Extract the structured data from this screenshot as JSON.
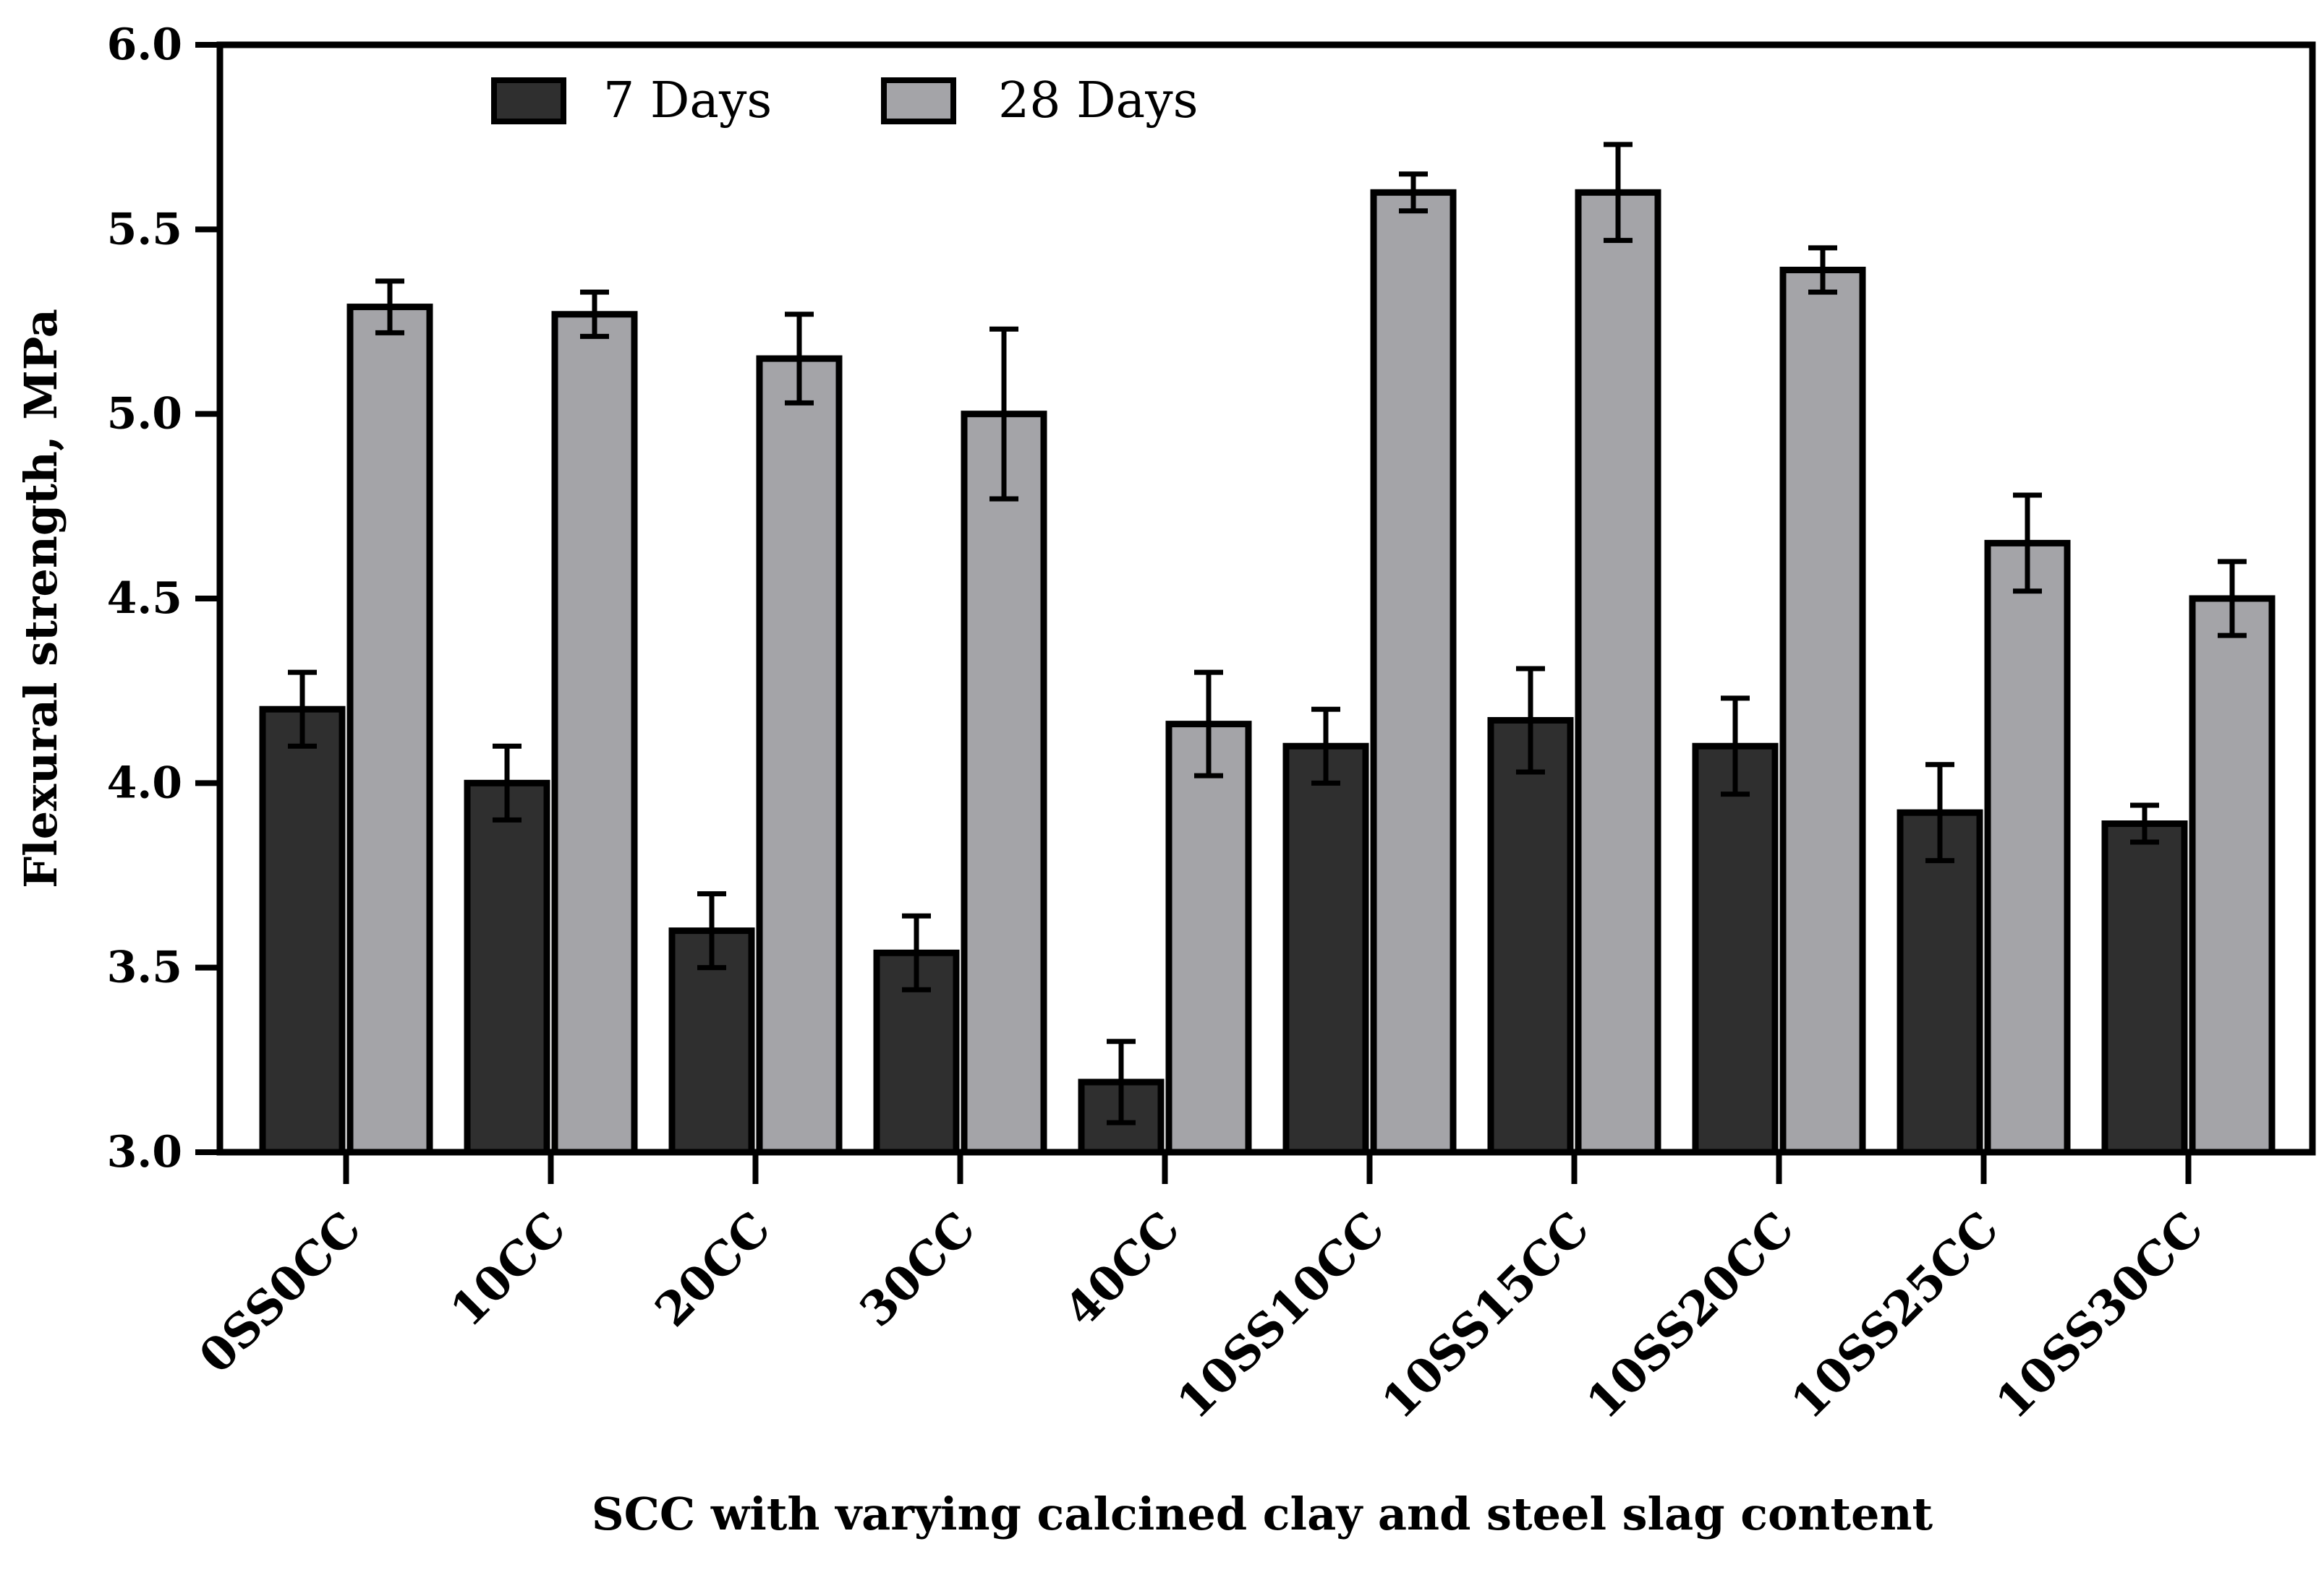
{
  "chart_data": {
    "type": "bar",
    "title": "",
    "xlabel": "SCC with varying calcined clay and steel slag content",
    "ylabel": "Flexural strength, MPa",
    "ylim": [
      3.0,
      6.0
    ],
    "yticks": [
      "3.0",
      "3.5",
      "4.0",
      "4.5",
      "5.0",
      "5.5",
      "6.0"
    ],
    "legend_position": "top-left",
    "categories": [
      "0SS0CC",
      "10CC",
      "20CC",
      "30CC",
      "40CC",
      "10SS10CC",
      "10SS15CC",
      "10SS20CC",
      "10SS25CC",
      "10SS30CC"
    ],
    "series": [
      {
        "name": "7 Days",
        "color": "#2f2f2f",
        "values": [
          4.2,
          4.0,
          3.6,
          3.54,
          3.19,
          4.1,
          4.17,
          4.1,
          3.92,
          3.89
        ],
        "errors": [
          0.1,
          0.1,
          0.1,
          0.1,
          0.11,
          0.1,
          0.14,
          0.13,
          0.13,
          0.05
        ]
      },
      {
        "name": "28 Days",
        "color": "#a4a4a8",
        "values": [
          5.29,
          5.27,
          5.15,
          5.0,
          4.16,
          5.6,
          5.6,
          5.39,
          4.65,
          4.5
        ],
        "errors": [
          0.07,
          0.06,
          0.12,
          0.23,
          0.14,
          0.05,
          0.13,
          0.06,
          0.13,
          0.1
        ]
      }
    ]
  }
}
